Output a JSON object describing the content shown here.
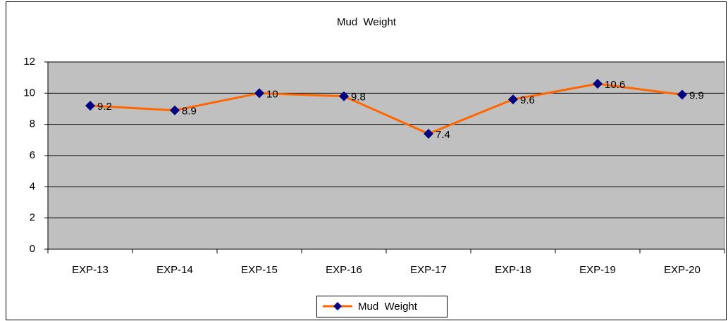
{
  "chart_data": {
    "type": "line",
    "title": "Mud  Weight",
    "categories": [
      "EXP-13",
      "EXP-14",
      "EXP-15",
      "EXP-16",
      "EXP-17",
      "EXP-18",
      "EXP-19",
      "EXP-20"
    ],
    "series": [
      {
        "name": "Mud  Weight",
        "color": "#ff6600",
        "marker_color": "#000080",
        "values": [
          9.2,
          8.9,
          10,
          9.8,
          7.4,
          9.6,
          10.6,
          9.9
        ]
      }
    ],
    "ylim": [
      0,
      12
    ],
    "yticks": [
      0,
      2,
      4,
      6,
      8,
      10,
      12
    ],
    "grid": true,
    "plot_background": "#c0c0c0",
    "legend": "bottom"
  }
}
